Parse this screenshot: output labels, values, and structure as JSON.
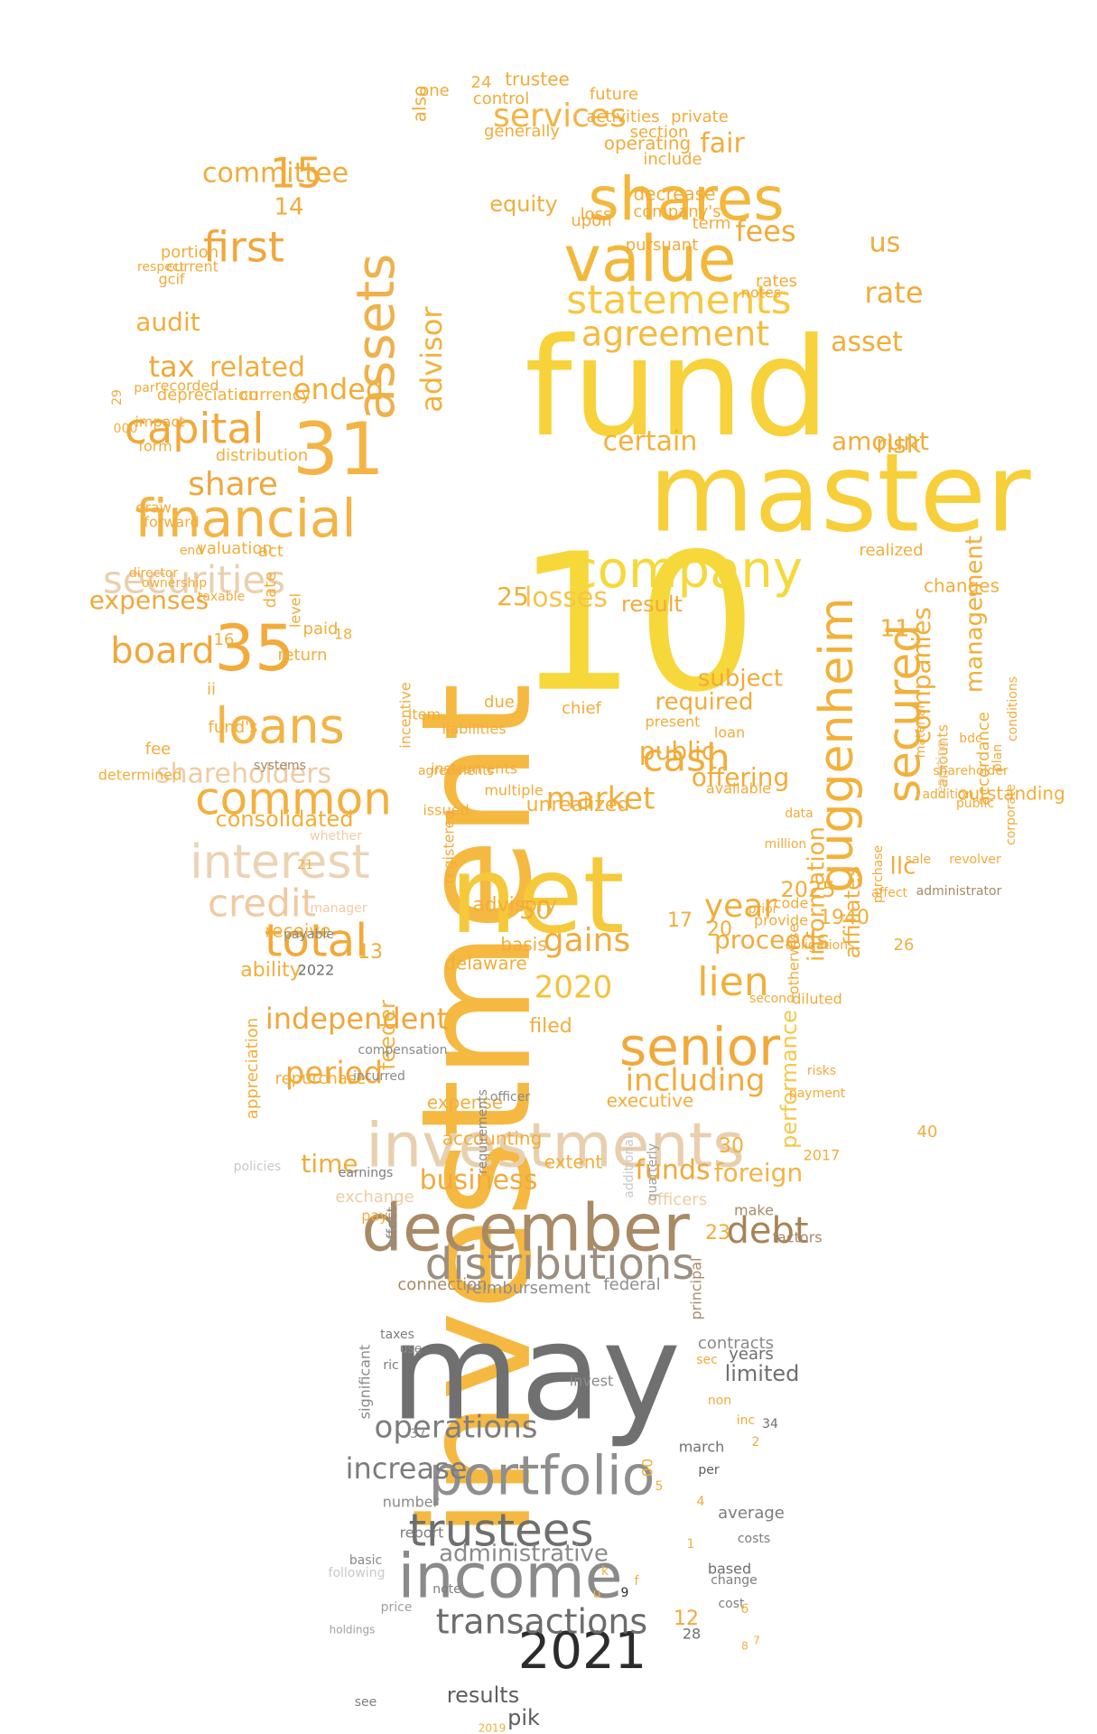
{
  "words": [
    {
      "text": "investment",
      "color": "#f5b942",
      "rotate": -90
    },
    {
      "text": "fund",
      "color": "#f7d23a"
    },
    {
      "text": "master",
      "color": "#f7cf3a"
    },
    {
      "text": "may",
      "color": "#707070"
    },
    {
      "text": "net",
      "color": "#f5c93a"
    },
    {
      "text": "10",
      "color": "#f7d83a"
    },
    {
      "text": "12",
      "color": "#f2a93a"
    },
    {
      "text": "investments",
      "color": "#e8cfae"
    },
    {
      "text": "december",
      "color": "#a88a66"
    },
    {
      "text": "income",
      "color": "#8a8a8a"
    },
    {
      "text": "portfolio",
      "color": "#8e8e8e"
    },
    {
      "text": "distributions",
      "color": "#9a8f80"
    },
    {
      "text": "trustees",
      "color": "#6f6f6f"
    },
    {
      "text": "company",
      "color": "#f7d83a"
    },
    {
      "text": "value",
      "color": "#f2b83a"
    },
    {
      "text": "shares",
      "color": "#f4b73a"
    },
    {
      "text": "guggenheim",
      "color": "#f3b13a",
      "rotate": -90
    },
    {
      "text": "secured",
      "color": "#f0b23e",
      "rotate": -90
    },
    {
      "text": "senior",
      "color": "#f0a93a"
    },
    {
      "text": "financial",
      "color": "#f3b445"
    },
    {
      "text": "securities",
      "color": "#ead0ae"
    },
    {
      "text": "assets",
      "color": "#f0b04a",
      "rotate": -90
    },
    {
      "text": "31",
      "color": "#f3b445"
    },
    {
      "text": "35",
      "color": "#f2aa3a"
    },
    {
      "text": "loans",
      "color": "#f3b445"
    },
    {
      "text": "common",
      "color": "#f3b03d"
    },
    {
      "text": "interest",
      "color": "#ecd3b4"
    },
    {
      "text": "credit",
      "color": "#f1c9a0"
    },
    {
      "text": "total",
      "color": "#f2a93a"
    },
    {
      "text": "capital",
      "color": "#f2a83a"
    },
    {
      "text": "first",
      "color": "#f2a63a"
    },
    {
      "text": "board",
      "color": "#f0a83a"
    },
    {
      "text": "statements",
      "color": "#f7c840"
    },
    {
      "text": "agreement",
      "color": "#f4bb3d"
    },
    {
      "text": "services",
      "color": "#f3b445"
    },
    {
      "text": "lien",
      "color": "#f2b03a"
    },
    {
      "text": "2020",
      "color": "#f4c23a"
    },
    {
      "text": "2021",
      "color": "#2c2c2c"
    },
    {
      "text": "debt",
      "color": "#a68357"
    },
    {
      "text": "operations",
      "color": "#7d7d7d"
    },
    {
      "text": "increase",
      "color": "#7d7d7d"
    },
    {
      "text": "transactions",
      "color": "#6c6c6c"
    },
    {
      "text": "administrative",
      "color": "#8a8a8a"
    },
    {
      "text": "results",
      "color": "#5e5e5e"
    },
    {
      "text": "pik",
      "color": "#5e5e5e"
    },
    {
      "text": "independent",
      "color": "#f1a53a"
    },
    {
      "text": "including",
      "color": "#f2ab3a"
    },
    {
      "text": "business",
      "color": "#f1aa3f"
    },
    {
      "text": "funds",
      "color": "#f0a83a"
    },
    {
      "text": "foreign",
      "color": "#f3b445"
    },
    {
      "text": "cash",
      "color": "#f2ae3a"
    },
    {
      "text": "market",
      "color": "#f2ad3a"
    },
    {
      "text": "year",
      "color": "#f2ae3a"
    },
    {
      "text": "gains",
      "color": "#f1aa3a"
    },
    {
      "text": "losses",
      "color": "#f5c44a"
    },
    {
      "text": "period",
      "color": "#f2a83a"
    },
    {
      "text": "time",
      "color": "#f1ab3a"
    },
    {
      "text": "fees",
      "color": "#f2ab3a"
    },
    {
      "text": "us",
      "color": "#f2ab3a"
    },
    {
      "text": "rate",
      "color": "#f2ab3a"
    },
    {
      "text": "tax",
      "color": "#f0a83a"
    },
    {
      "text": "share",
      "color": "#f0a73a"
    },
    {
      "text": "related",
      "color": "#f2ae3a"
    },
    {
      "text": "audit",
      "color": "#f2ae3a"
    },
    {
      "text": "committee",
      "color": "#f2ab3a"
    },
    {
      "text": "fair",
      "color": "#f2ad3a"
    },
    {
      "text": "equity",
      "color": "#f2ae3a"
    },
    {
      "text": "advisor",
      "color": "#f3b13a",
      "rotate": -90
    },
    {
      "text": "certain",
      "color": "#f3b13a"
    },
    {
      "text": "amount",
      "color": "#f2ad3a"
    },
    {
      "text": "risk",
      "color": "#f2ad3a"
    },
    {
      "text": "asset",
      "color": "#f2ad3a"
    },
    {
      "text": "expenses",
      "color": "#f0a83a"
    },
    {
      "text": "ended",
      "color": "#f2ad3a"
    },
    {
      "text": "consolidated",
      "color": "#f2ae3a"
    },
    {
      "text": "shareholders",
      "color": "#efcca4"
    },
    {
      "text": "proceeds",
      "color": "#f2ab3a"
    },
    {
      "text": "offering",
      "color": "#f2ab3a"
    },
    {
      "text": "public",
      "color": "#f2ab3a"
    },
    {
      "text": "required",
      "color": "#f2ab3a"
    },
    {
      "text": "subject",
      "color": "#f2ab3a"
    },
    {
      "text": "result",
      "color": "#f2ab3a"
    },
    {
      "text": "companies",
      "color": "#f2ae3a",
      "rotate": -90
    },
    {
      "text": "management",
      "color": "#f2ae3a",
      "rotate": -90
    },
    {
      "text": "information",
      "color": "#f2ae3a",
      "rotate": -90
    },
    {
      "text": "affiliates",
      "color": "#f2ae3a",
      "rotate": -90
    },
    {
      "text": "llc",
      "color": "#f2ab3a"
    },
    {
      "text": "feeder",
      "color": "#f2b03a",
      "rotate": -90
    },
    {
      "text": "unrealized",
      "color": "#f2ae3a"
    },
    {
      "text": "performance",
      "color": "#f5c84a",
      "rotate": -90
    },
    {
      "text": "expense",
      "color": "#f2ae3a"
    },
    {
      "text": "executive",
      "color": "#f2ae3a"
    },
    {
      "text": "accounting",
      "color": "#f2ae3a"
    },
    {
      "text": "extent",
      "color": "#f2ae3a"
    },
    {
      "text": "filed",
      "color": "#f2ae3a"
    },
    {
      "text": "advisory",
      "color": "#f2ae3a"
    },
    {
      "text": "delaware",
      "color": "#f2ae3a"
    },
    {
      "text": "receive",
      "color": "#f2ae3a"
    },
    {
      "text": "basis",
      "color": "#f2ae3a"
    },
    {
      "text": "ability",
      "color": "#f2ae3a"
    },
    {
      "text": "act",
      "color": "#f2ae3a"
    },
    {
      "text": "valuation",
      "color": "#f2ae3a"
    },
    {
      "text": "depreciation",
      "color": "#f2ae3a"
    },
    {
      "text": "currency",
      "color": "#f2ae3a"
    },
    {
      "text": "distribution",
      "color": "#f2ae3a"
    },
    {
      "text": "realized",
      "color": "#f2ae3a"
    },
    {
      "text": "changes",
      "color": "#f2ae3a"
    },
    {
      "text": "outstanding",
      "color": "#f2ae3a"
    },
    {
      "text": "accordance",
      "color": "#f2ae3a",
      "rotate": -90
    },
    {
      "text": "date",
      "color": "#f2ae3a",
      "rotate": -90
    },
    {
      "text": "appreciation",
      "color": "#f2ae3a",
      "rotate": -90
    },
    {
      "text": "repurchase",
      "color": "#f2ae3a"
    },
    {
      "text": "return",
      "color": "#f2ae3a"
    },
    {
      "text": "paid",
      "color": "#f2ae3a"
    },
    {
      "text": "fund's",
      "color": "#f2ae3a"
    },
    {
      "text": "fee",
      "color": "#f2ae3a"
    },
    {
      "text": "determined",
      "color": "#f2ae3a"
    },
    {
      "text": "exchange",
      "color": "#efcca4"
    },
    {
      "text": "pay",
      "color": "#f2ae3a"
    },
    {
      "text": "officers",
      "color": "#efcca4"
    },
    {
      "text": "make",
      "color": "#a88a66"
    },
    {
      "text": "factors",
      "color": "#a88a66"
    },
    {
      "text": "connection",
      "color": "#a88a66"
    },
    {
      "text": "reimbursement",
      "color": "#8f8f8f"
    },
    {
      "text": "federal",
      "color": "#8f8f8f"
    },
    {
      "text": "principal",
      "color": "#a88a66",
      "rotate": -90
    },
    {
      "text": "significant",
      "color": "#8a8a8a",
      "rotate": -90
    },
    {
      "text": "invest",
      "color": "#8a8a8a"
    },
    {
      "text": "contracts",
      "color": "#8a8a8a"
    },
    {
      "text": "years",
      "color": "#6f6f6f"
    },
    {
      "text": "limited",
      "color": "#6f6f6f"
    },
    {
      "text": "march",
      "color": "#6f6f6f"
    },
    {
      "text": "per",
      "color": "#5e5e5e"
    },
    {
      "text": "average",
      "color": "#7d7d7d"
    },
    {
      "text": "costs",
      "color": "#7d7d7d"
    },
    {
      "text": "based",
      "color": "#6f6f6f"
    },
    {
      "text": "change",
      "color": "#7d7d7d"
    },
    {
      "text": "cost",
      "color": "#7d7d7d"
    },
    {
      "text": "note",
      "color": "#7d7d7d"
    },
    {
      "text": "report",
      "color": "#7d7d7d"
    },
    {
      "text": "number",
      "color": "#8a8a8a"
    },
    {
      "text": "basic",
      "color": "#8a8a8a"
    },
    {
      "text": "following",
      "color": "#c9c9c9"
    },
    {
      "text": "price",
      "color": "#a0a0a0"
    },
    {
      "text": "holdings",
      "color": "#a0a0a0"
    },
    {
      "text": "see",
      "color": "#7d7d7d"
    },
    {
      "text": "2019",
      "color": "#f2ae3a"
    },
    {
      "text": "2025",
      "color": "#f2ae3a"
    },
    {
      "text": "2017",
      "color": "#f2ae3a"
    },
    {
      "text": "2022",
      "color": "#6f6f6f"
    },
    {
      "text": "1940",
      "color": "#f2ae3a"
    },
    {
      "text": "15",
      "color": "#f2ab3a"
    },
    {
      "text": "14",
      "color": "#f2ab3a"
    },
    {
      "text": "25",
      "color": "#f2ae3a"
    },
    {
      "text": "50",
      "color": "#f2ae3a"
    },
    {
      "text": "11",
      "color": "#f2ae3a"
    },
    {
      "text": "13",
      "color": "#f2ae3a"
    },
    {
      "text": "17",
      "color": "#f2ae3a"
    },
    {
      "text": "20",
      "color": "#f2ae3a"
    },
    {
      "text": "30",
      "color": "#f2ae3a"
    },
    {
      "text": "23",
      "color": "#f2ae3a"
    },
    {
      "text": "26",
      "color": "#f2ae3a"
    },
    {
      "text": "40",
      "color": "#f2ae3a"
    },
    {
      "text": "00",
      "color": "#f2ae3a",
      "rotate": -90
    },
    {
      "text": "28",
      "color": "#6f6f6f"
    },
    {
      "text": "34",
      "color": "#6f6f6f"
    },
    {
      "text": "37",
      "color": "#8a8a8a"
    },
    {
      "text": "29",
      "color": "#f2ae3a",
      "rotate": -90
    },
    {
      "text": "16",
      "color": "#f2ae3a"
    },
    {
      "text": "18",
      "color": "#f2ae3a"
    },
    {
      "text": "21",
      "color": "#f2ae3a"
    },
    {
      "text": "24",
      "color": "#f2ae3a"
    },
    {
      "text": "000",
      "color": "#f2ae3a"
    },
    {
      "text": "ii",
      "color": "#f2ae3a"
    },
    {
      "text": "also",
      "color": "#f2ab3a",
      "rotate": -90
    },
    {
      "text": "one",
      "color": "#f2ab3a"
    },
    {
      "text": "trustee",
      "color": "#f2ab3a"
    },
    {
      "text": "control",
      "color": "#f2ab3a"
    },
    {
      "text": "future",
      "color": "#f2ab3a"
    },
    {
      "text": "activities",
      "color": "#f2ab3a"
    },
    {
      "text": "private",
      "color": "#f2ab3a"
    },
    {
      "text": "generally",
      "color": "#f2ab3a"
    },
    {
      "text": "section",
      "color": "#f2ab3a"
    },
    {
      "text": "operating",
      "color": "#f2ab3a"
    },
    {
      "text": "include",
      "color": "#f2ab3a"
    },
    {
      "text": "decrease",
      "color": "#f2ab3a"
    },
    {
      "text": "company's",
      "color": "#f2ab3a"
    },
    {
      "text": "term",
      "color": "#f2ab3a"
    },
    {
      "text": "rates",
      "color": "#f2ab3a"
    },
    {
      "text": "notes",
      "color": "#f2ab3a"
    },
    {
      "text": "loss",
      "color": "#f2ab3a"
    },
    {
      "text": "pursuant",
      "color": "#f2ab3a"
    },
    {
      "text": "upon",
      "color": "#f2ab3a"
    },
    {
      "text": "portion",
      "color": "#f2ab3a"
    },
    {
      "text": "current",
      "color": "#f2ab3a"
    },
    {
      "text": "respect",
      "color": "#f2ab3a"
    },
    {
      "text": "gcif",
      "color": "#f2ab3a"
    },
    {
      "text": "recorded",
      "color": "#f2ab3a"
    },
    {
      "text": "impact",
      "color": "#f2ab3a"
    },
    {
      "text": "par",
      "color": "#f2ab3a"
    },
    {
      "text": "form",
      "color": "#f2ab3a"
    },
    {
      "text": "draw",
      "color": "#f2ab3a"
    },
    {
      "text": "forward",
      "color": "#f2ab3a"
    },
    {
      "text": "end",
      "color": "#f2ab3a"
    },
    {
      "text": "director",
      "color": "#f2ab3a"
    },
    {
      "text": "ownership",
      "color": "#f2ab3a"
    },
    {
      "text": "taxable",
      "color": "#f2ab3a"
    },
    {
      "text": "level",
      "color": "#f2ab3a",
      "rotate": -90
    },
    {
      "text": "incentive",
      "color": "#f2ab3a",
      "rotate": -90
    },
    {
      "text": "item",
      "color": "#f2ab3a"
    },
    {
      "text": "due",
      "color": "#f2ab3a"
    },
    {
      "text": "liabilities",
      "color": "#f2ab3a"
    },
    {
      "text": "instruments",
      "color": "#f2ab3a"
    },
    {
      "text": "agreements",
      "color": "#f2ab3a"
    },
    {
      "text": "multiple",
      "color": "#f2ab3a"
    },
    {
      "text": "issued",
      "color": "#f2ab3a"
    },
    {
      "text": "registered",
      "color": "#f2ab3a",
      "rotate": -90
    },
    {
      "text": "chief",
      "color": "#f2ab3a"
    },
    {
      "text": "present",
      "color": "#f2ab3a"
    },
    {
      "text": "loan",
      "color": "#f2ab3a"
    },
    {
      "text": "available",
      "color": "#f2ab3a"
    },
    {
      "text": "code",
      "color": "#f2ab3a"
    },
    {
      "text": "second",
      "color": "#f2ab3a"
    },
    {
      "text": "diluted",
      "color": "#f2ab3a"
    },
    {
      "text": "risks",
      "color": "#f2ab3a"
    },
    {
      "text": "payment",
      "color": "#f2ab3a"
    },
    {
      "text": "amounts",
      "color": "#f2ab3a",
      "rotate": -90
    },
    {
      "text": "reporting",
      "color": "#efcca4",
      "rotate": -90
    },
    {
      "text": "material",
      "color": "#f2ab3a",
      "rotate": -90
    },
    {
      "text": "addition",
      "color": "#f2ab3a"
    },
    {
      "text": "public",
      "color": "#f2ab3a"
    },
    {
      "text": "conditions",
      "color": "#f2ab3a",
      "rotate": -90
    },
    {
      "text": "plan",
      "color": "#f2ab3a",
      "rotate": -90
    },
    {
      "text": "corporate",
      "color": "#f2ab3a",
      "rotate": -90
    },
    {
      "text": "prior",
      "color": "#f2ab3a"
    },
    {
      "text": "otherwise",
      "color": "#f2ab3a",
      "rotate": -90
    },
    {
      "text": "purchase",
      "color": "#f2ab3a",
      "rotate": -90
    },
    {
      "text": "obligations",
      "color": "#f2ab3a"
    },
    {
      "text": "sale",
      "color": "#f2ab3a"
    },
    {
      "text": "data",
      "color": "#f2ab3a"
    },
    {
      "text": "million",
      "color": "#f2ab3a"
    },
    {
      "text": "affect",
      "color": "#f2ab3a"
    },
    {
      "text": "provide",
      "color": "#f2ab3a"
    },
    {
      "text": "revolver",
      "color": "#f2ab3a"
    },
    {
      "text": "bdc",
      "color": "#f2ab3a"
    },
    {
      "text": "shareholder",
      "color": "#f2ab3a"
    },
    {
      "text": "administrator",
      "color": "#a88a66"
    },
    {
      "text": "systems",
      "color": "#a88a66"
    },
    {
      "text": "whether",
      "color": "#efcca4"
    },
    {
      "text": "manager",
      "color": "#efcca4"
    },
    {
      "text": "payable",
      "color": "#8a8a8a"
    },
    {
      "text": "incurred",
      "color": "#8a8a8a"
    },
    {
      "text": "compensation",
      "color": "#8a8a8a"
    },
    {
      "text": "officer",
      "color": "#8a8a8a"
    },
    {
      "text": "requirements",
      "color": "#8a8a8a",
      "rotate": -90
    },
    {
      "text": "additional",
      "color": "#c9c9c9",
      "rotate": -90
    },
    {
      "text": "quarterly",
      "color": "#a0a0a0",
      "rotate": -90
    },
    {
      "text": "earnings",
      "color": "#7d7d7d"
    },
    {
      "text": "policies",
      "color": "#c9c9c9"
    },
    {
      "text": "effect",
      "color": "#8a8a8a",
      "rotate": -90
    },
    {
      "text": "taxes",
      "color": "#7d7d7d"
    },
    {
      "text": "use",
      "color": "#8a8a8a"
    },
    {
      "text": "ric",
      "color": "#7d7d7d"
    },
    {
      "text": "sec",
      "color": "#f2ab3a"
    },
    {
      "text": "non",
      "color": "#f2ab3a"
    },
    {
      "text": "inc",
      "color": "#f2ab3a"
    },
    {
      "text": "2",
      "color": "#f2a93a"
    },
    {
      "text": "4",
      "color": "#f2a93a"
    },
    {
      "text": "5",
      "color": "#f2ae3a"
    },
    {
      "text": "6",
      "color": "#f2ae3a"
    },
    {
      "text": "7",
      "color": "#f2ae3a"
    },
    {
      "text": "8",
      "color": "#f2ae3a"
    },
    {
      "text": "9",
      "color": "#2c2c2c"
    },
    {
      "text": "1",
      "color": "#f2ae3a"
    },
    {
      "text": "u",
      "color": "#f2ae3a"
    },
    {
      "text": "f",
      "color": "#f2ae3a"
    },
    {
      "text": "k",
      "color": "#f2ae3a"
    }
  ]
}
